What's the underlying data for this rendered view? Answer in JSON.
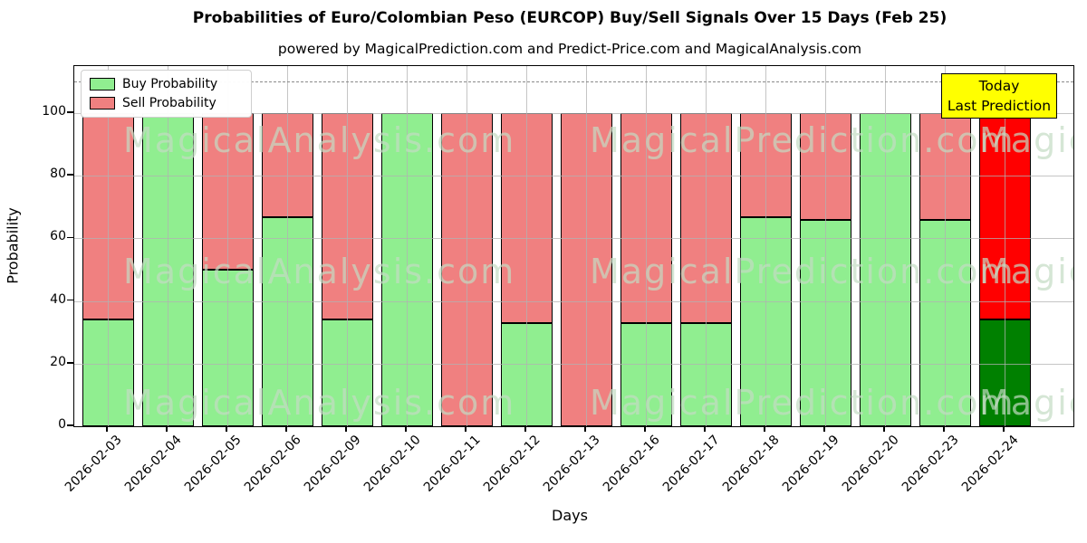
{
  "title": "Probabilities of Euro/Colombian Peso (EURCOP) Buy/Sell Signals Over 15 Days (Feb 25)",
  "subtitle": "powered by MagicalPrediction.com and Predict-Price.com and MagicalAnalysis.com",
  "axes": {
    "xlabel": "Days",
    "ylabel": "Probability",
    "yticks": [
      0,
      20,
      40,
      60,
      80,
      100
    ],
    "ylim": [
      0,
      115
    ],
    "grid": true,
    "dashed_line_y": 110,
    "dashed_line_color": "#8a8a8a"
  },
  "legend": {
    "position": "upper-left",
    "items": [
      {
        "label": "Buy Probability",
        "color": "#90EE90"
      },
      {
        "label": "Sell Probability",
        "color": "#F08080"
      }
    ]
  },
  "annotation_box": {
    "lines": [
      "Today",
      "Last Prediction"
    ],
    "bg_color": "#FFFF00",
    "border_color": "#000000"
  },
  "watermarks": {
    "color": "rgba(195,220,195,0.7)",
    "left_text": "MagicalAnalysis.com",
    "mid_text": "MagicalPrediction.com",
    "right_text": "MagicalAnalysis.com"
  },
  "chart_data": {
    "type": "bar",
    "stacked": true,
    "title": "Probabilities of Euro/Colombian Peso (EURCOP) Buy/Sell Signals Over 15 Days (Feb 25)",
    "xlabel": "Days",
    "ylabel": "Probability",
    "ylim": [
      0,
      115
    ],
    "categories": [
      "2026-02-03",
      "2026-02-04",
      "2026-02-05",
      "2026-02-06",
      "2026-02-09",
      "2026-02-10",
      "2026-02-11",
      "2026-02-12",
      "2026-02-13",
      "2026-02-16",
      "2026-02-17",
      "2026-02-18",
      "2026-02-19",
      "2026-02-20",
      "2026-02-23",
      "2026-02-24"
    ],
    "series": [
      {
        "name": "Buy Probability",
        "color": "#90EE90",
        "values": [
          34,
          100,
          50,
          66.7,
          34,
          100,
          0,
          33,
          0,
          33,
          33,
          66.7,
          66,
          100,
          66,
          34
        ]
      },
      {
        "name": "Sell Probability",
        "color": "#F08080",
        "values": [
          66,
          0,
          50,
          33.3,
          66,
          0,
          100,
          67,
          100,
          67,
          67,
          33.3,
          34,
          0,
          34,
          66
        ]
      }
    ],
    "today_bar": {
      "category": "2026-02-24",
      "index": 15,
      "buy": 34,
      "sell": 66,
      "buy_color": "#008000",
      "sell_color": "#FF0000"
    },
    "bar_edge_color": "#000000"
  }
}
